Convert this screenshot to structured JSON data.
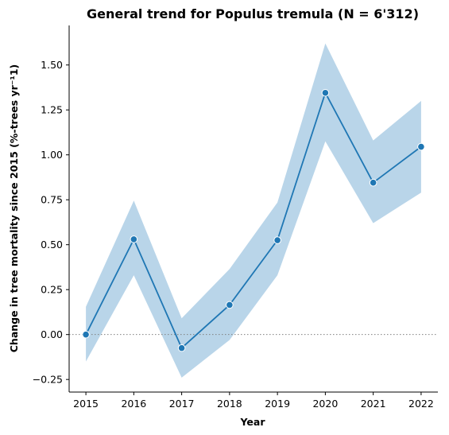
{
  "chart_data": {
    "type": "line",
    "title": "General trend for Populus tremula  (N = 6'312)",
    "xlabel": "Year",
    "ylabel": "Change in tree mortality since 2015 (%-trees yr⁻¹1)",
    "x": [
      2015,
      2016,
      2017,
      2018,
      2019,
      2020,
      2021,
      2022
    ],
    "series": [
      {
        "values": [
          0.0,
          0.53,
          -0.075,
          0.165,
          0.525,
          1.345,
          0.845,
          1.045
        ],
        "ci_lower": [
          -0.15,
          0.33,
          -0.24,
          -0.03,
          0.33,
          1.075,
          0.62,
          0.79
        ],
        "ci_upper": [
          0.155,
          0.745,
          0.09,
          0.365,
          0.735,
          1.62,
          1.08,
          1.3
        ]
      }
    ],
    "xlim": [
      2014.65,
      2022.35
    ],
    "ylim": [
      -0.32,
      1.72
    ],
    "yticks": [
      "−0.25",
      "0.00",
      "0.25",
      "0.50",
      "0.75",
      "1.00",
      "1.25",
      "1.50"
    ],
    "ytick_values": [
      -0.25,
      0,
      0.25,
      0.5,
      0.75,
      1.0,
      1.25,
      1.5
    ],
    "xticks": [
      "2015",
      "2016",
      "2017",
      "2018",
      "2019",
      "2020",
      "2021",
      "2022"
    ],
    "reference_line": 0,
    "grid": false,
    "colors": {
      "line": "#1f77b4",
      "band": "#b9d5e9",
      "marker_edge": "#ffffff",
      "reference": "#808080"
    }
  }
}
